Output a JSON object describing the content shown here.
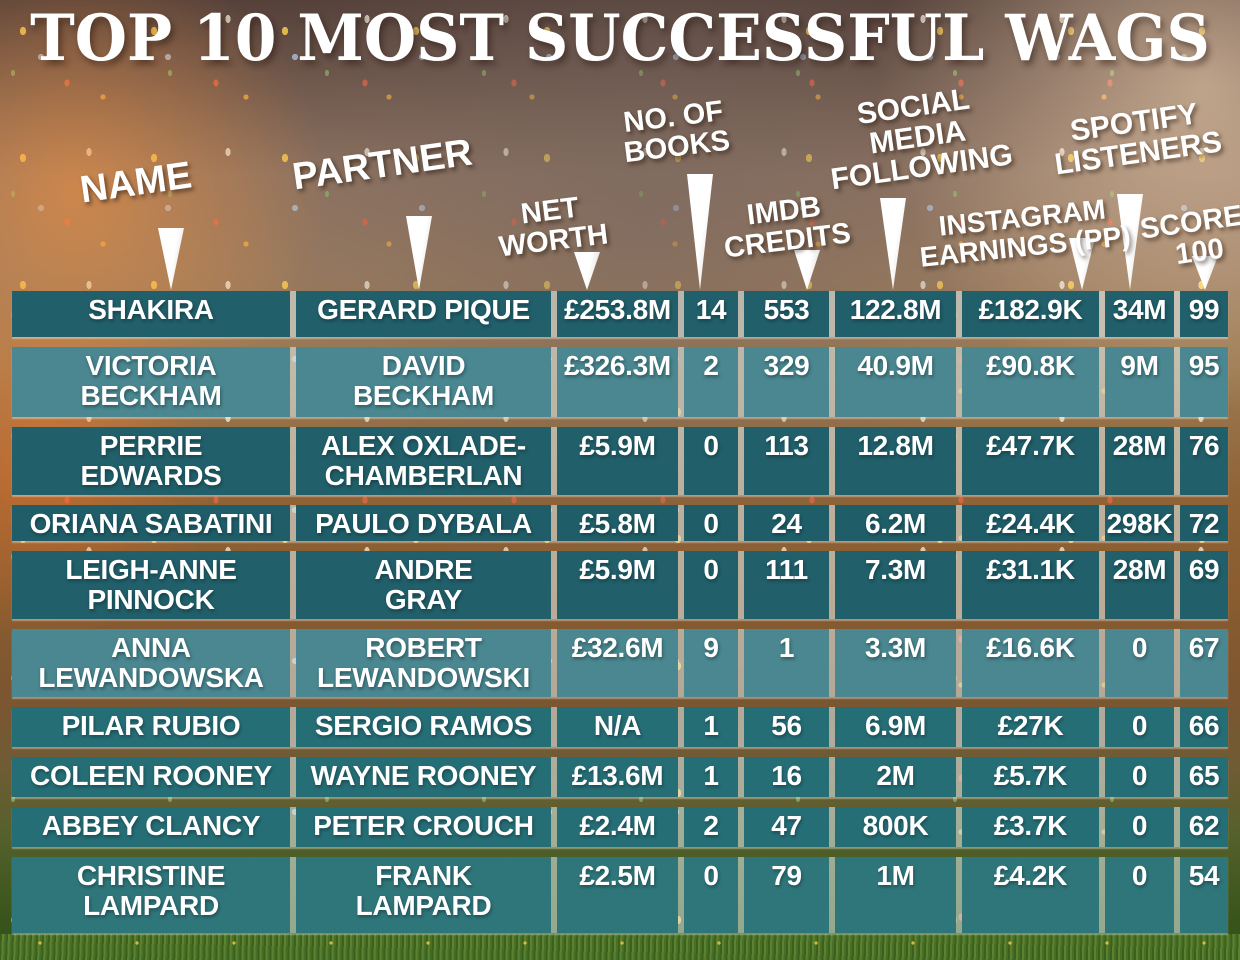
{
  "title": "TOP 10 MOST SUCCESSFUL WAGS",
  "colors": {
    "cell_teal": "#215F6A",
    "cell_teal_light": "#4A8790",
    "grid_line": "#E2EEEE",
    "text": "#FFFFFF",
    "pointer": "#FFFFFF"
  },
  "display": {
    "header_labels": [
      "NAME",
      "PARTNER",
      "NET\nWORTH",
      "NO. OF\nBOOKS",
      "IMDB\nCREDITS",
      "SOCIAL\nMEDIA\nFOLLOWING",
      "INSTAGRAM\nEARNINGS (PP)",
      "SPOTIFY\nLISTENERS",
      "SCORE/\n100"
    ],
    "rows": [
      [
        "SHAKIRA",
        "GERARD PIQUE",
        "£253.8M",
        "14",
        "553",
        "122.8M",
        "£182.9K",
        "34M",
        "99"
      ],
      [
        "VICTORIA\nBECKHAM",
        "DAVID\nBECKHAM",
        "£326.3M",
        "2",
        "329",
        "40.9M",
        "£90.8K",
        "9M",
        "95"
      ],
      [
        "PERRIE\nEDWARDS",
        "ALEX OXLADE-\nCHAMBERLAN",
        "£5.9M",
        "0",
        "113",
        "12.8M",
        "£47.7K",
        "28M",
        "76"
      ],
      [
        "ORIANA SABATINI",
        "PAULO DYBALA",
        "£5.8M",
        "0",
        "24",
        "6.2M",
        "£24.4K",
        "298K",
        "72"
      ],
      [
        "LEIGH-ANNE\nPINNOCK",
        "ANDRE\nGRAY",
        "£5.9M",
        "0",
        "111",
        "7.3M",
        "£31.1K",
        "28M",
        "69"
      ],
      [
        "ANNA\nLEWANDOWSKA",
        "ROBERT\nLEWANDOWSKI",
        "£32.6M",
        "9",
        "1",
        "3.3M",
        "£16.6K",
        "0",
        "67"
      ],
      [
        "PILAR RUBIO",
        "SERGIO RAMOS",
        "N/A",
        "1",
        "56",
        "6.9M",
        "£27K",
        "0",
        "66"
      ],
      [
        "COLEEN ROONEY",
        "WAYNE ROONEY",
        "£13.6M",
        "1",
        "16",
        "2M",
        "£5.7K",
        "0",
        "65"
      ],
      [
        "ABBEY CLANCY",
        "PETER CROUCH",
        "£2.4M",
        "2",
        "47",
        "800K",
        "£3.7K",
        "0",
        "62"
      ],
      [
        "CHRISTINE\nLAMPARD",
        "FRANK\nLAMPARD",
        "£2.5M",
        "0",
        "79",
        "1M",
        "£4.2K",
        "0",
        "54"
      ]
    ]
  },
  "chart_data": {
    "type": "table",
    "title": "TOP 10 MOST SUCCESSFUL WAGS",
    "columns": [
      "NAME",
      "PARTNER",
      "NET WORTH",
      "NO. OF BOOKS",
      "IMDB CREDITS",
      "SOCIAL MEDIA FOLLOWING",
      "INSTAGRAM EARNINGS (PP)",
      "SPOTIFY LISTENERS",
      "SCORE/100"
    ],
    "rows": [
      [
        "SHAKIRA",
        "GERARD PIQUE",
        "£253.8M",
        14,
        553,
        "122.8M",
        "£182.9K",
        "34M",
        99
      ],
      [
        "VICTORIA BECKHAM",
        "DAVID BECKHAM",
        "£326.3M",
        2,
        329,
        "40.9M",
        "£90.8K",
        "9M",
        95
      ],
      [
        "PERRIE EDWARDS",
        "ALEX OXLADE-CHAMBERLAN",
        "£5.9M",
        0,
        113,
        "12.8M",
        "£47.7K",
        "28M",
        76
      ],
      [
        "ORIANA SABATINI",
        "PAULO DYBALA",
        "£5.8M",
        0,
        24,
        "6.2M",
        "£24.4K",
        "298K",
        72
      ],
      [
        "LEIGH-ANNE PINNOCK",
        "ANDRE GRAY",
        "£5.9M",
        0,
        111,
        "7.3M",
        "£31.1K",
        "28M",
        69
      ],
      [
        "ANNA LEWANDOWSKA",
        "ROBERT LEWANDOWSKI",
        "£32.6M",
        9,
        1,
        "3.3M",
        "£16.6K",
        "0",
        67
      ],
      [
        "PILAR RUBIO",
        "SERGIO RAMOS",
        "N/A",
        1,
        56,
        "6.9M",
        "£27K",
        "0",
        66
      ],
      [
        "COLEEN ROONEY",
        "WAYNE ROONEY",
        "£13.6M",
        1,
        16,
        "2M",
        "£5.7K",
        "0",
        65
      ],
      [
        "ABBEY CLANCY",
        "PETER CROUCH",
        "£2.4M",
        2,
        47,
        "800K",
        "£3.7K",
        "0",
        62
      ],
      [
        "CHRISTINE LAMPARD",
        "FRANK LAMPARD",
        "£2.5M",
        0,
        79,
        "1M",
        "£4.2K",
        "0",
        54
      ]
    ]
  }
}
